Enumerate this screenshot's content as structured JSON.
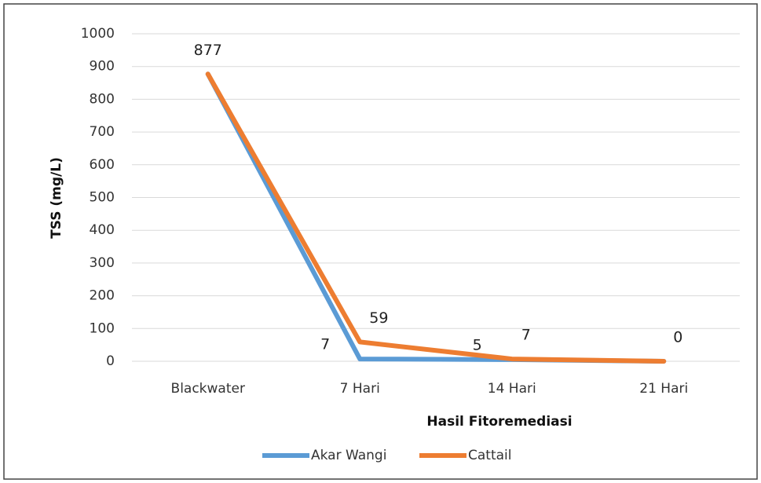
{
  "chart_data": {
    "type": "line",
    "x_label": "Hasil Fitoremediasi",
    "y_label": "TSS (mg/L)",
    "categories": [
      "Blackwater",
      "7 Hari",
      "14 Hari",
      "21 Hari"
    ],
    "series": [
      {
        "name": "Akar Wangi",
        "color": "#5b9bd5",
        "values": [
          877,
          7,
          5,
          0
        ],
        "show_labels": [
          false,
          true,
          true,
          false
        ],
        "label_position": "left"
      },
      {
        "name": "Cattail",
        "color": "#ed7d31",
        "values": [
          877,
          59,
          7,
          0
        ],
        "show_labels": [
          true,
          true,
          true,
          true
        ],
        "label_position": "above"
      }
    ],
    "ylim": [
      0,
      1000
    ],
    "yticks": [
      0,
      100,
      200,
      300,
      400,
      500,
      600,
      700,
      800,
      900,
      1000
    ],
    "grid": true,
    "legend": "bottom"
  }
}
